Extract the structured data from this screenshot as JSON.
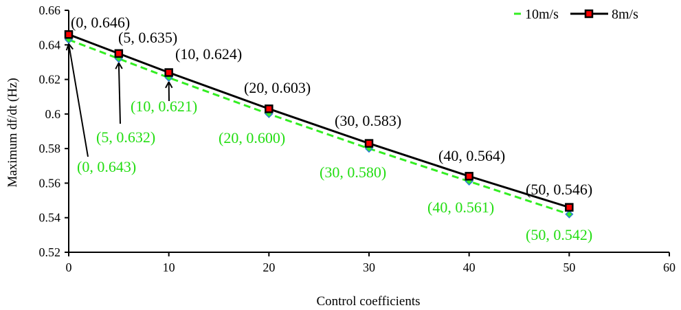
{
  "chart_data": {
    "type": "line",
    "title": "",
    "xlabel": "Control coefficients",
    "ylabel": "Maximum df/dt (Hz)",
    "xlim": [
      0,
      60
    ],
    "ylim": [
      0.52,
      0.66
    ],
    "xticks": [
      0,
      10,
      20,
      30,
      40,
      50,
      60
    ],
    "xtick_labels": [
      "0",
      "10",
      "20",
      "30",
      "40",
      "50",
      "60"
    ],
    "yticks": [
      0.52,
      0.54,
      0.56,
      0.58,
      0.6,
      0.62,
      0.64,
      0.66
    ],
    "ytick_labels": [
      "0.52",
      "0.54",
      "0.56",
      "0.58",
      "0.6",
      "0.62",
      "0.64",
      "0.66"
    ],
    "grid": false,
    "legend_position": "top-right",
    "x": [
      0,
      5,
      10,
      20,
      30,
      40,
      50
    ],
    "series": [
      {
        "name": "10m/s",
        "values": [
          0.643,
          0.632,
          0.621,
          0.6,
          0.58,
          0.561,
          0.542
        ],
        "color": "#33ee22",
        "marker_color": "#2a7fd4",
        "style": "dashed",
        "marker": "diamond",
        "annotations": [
          "(0, 0.643)",
          "(5, 0.632)",
          "(10, 0.621)",
          "(20, 0.600)",
          "(30, 0.580)",
          "(40, 0.561)",
          "(50, 0.542)"
        ]
      },
      {
        "name": "8m/s",
        "values": [
          0.646,
          0.635,
          0.624,
          0.603,
          0.583,
          0.564,
          0.546
        ],
        "color": "#000000",
        "marker_color": "#ff0000",
        "style": "solid",
        "marker": "square",
        "annotations": [
          "(0, 0.646)",
          "(5, 0.635)",
          "(10, 0.624)",
          "(20, 0.603)",
          "(30, 0.583)",
          "(40, 0.564)",
          "(50, 0.546)"
        ]
      }
    ]
  }
}
